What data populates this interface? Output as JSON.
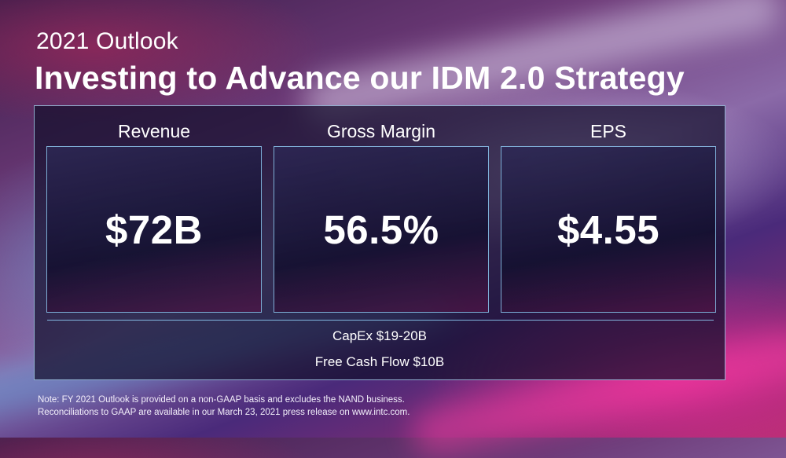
{
  "header": {
    "subtitle": "2021 Outlook",
    "title": "Investing to Advance our IDM 2.0 Strategy"
  },
  "metrics": [
    {
      "label": "Revenue",
      "value": "$72B"
    },
    {
      "label": "Gross Margin",
      "value": "56.5%"
    },
    {
      "label": "EPS",
      "value": "$4.55"
    }
  ],
  "details": {
    "capex": "CapEx $19-20B",
    "free_cash_flow": "Free Cash Flow $10B"
  },
  "footnote": {
    "line1": "Note: FY 2021 Outlook is provided on a non-GAAP basis and excludes the NAND business.",
    "line2": "Reconciliations to GAAP are available in our March 23, 2021 press release on www.intc.com."
  },
  "colors": {
    "panel_border": "#aad2f0",
    "accent_magenta": "#e62896",
    "text": "#ffffff"
  }
}
